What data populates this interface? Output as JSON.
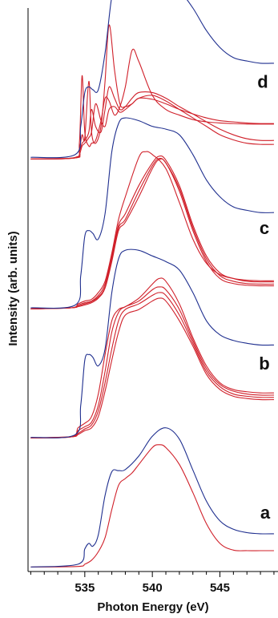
{
  "chart_data": {
    "type": "line",
    "xlabel": "Photon Energy (eV)",
    "ylabel": "Intensity (arb. units)",
    "xlim": [
      530.8,
      549.3
    ],
    "ylim": [
      0,
      10
    ],
    "grid": false,
    "legend": "none",
    "x_ticks": [
      535,
      540,
      545
    ],
    "x_tick_labels": [
      "535",
      "540",
      "545"
    ],
    "x_minor_tick_step": 1,
    "colors": {
      "blue": "#1f2f8f",
      "red": "#d0202a"
    },
    "panels": [
      {
        "label": "a",
        "series": [
          {
            "color": "blue",
            "x": [
              531,
              534.5,
              535,
              535.3,
              535.6,
              536,
              536.5,
              537,
              537.5,
              538,
              539,
              540,
              541,
              542,
              543,
              544,
              545,
              546,
              547,
              548,
              549
            ],
            "y": [
              0.03,
              0.08,
              0.35,
              0.45,
              0.4,
              0.6,
              1.3,
              1.72,
              1.74,
              1.76,
              2.0,
              2.35,
              2.5,
              2.3,
              1.75,
              1.2,
              0.85,
              0.7,
              0.64,
              0.62,
              0.62
            ]
          },
          {
            "color": "red",
            "x": [
              531,
              534.5,
              535,
              535.5,
              536,
              536.5,
              537,
              537.5,
              538,
              538.5,
              539,
              540,
              540.5,
              541,
              542,
              543,
              544,
              545,
              546,
              547,
              548,
              549
            ],
            "y": [
              0.03,
              0.04,
              0.08,
              0.15,
              0.3,
              0.55,
              1.05,
              1.48,
              1.6,
              1.7,
              1.85,
              2.15,
              2.2,
              2.15,
              1.85,
              1.35,
              0.8,
              0.45,
              0.33,
              0.32,
              0.32,
              0.32
            ]
          }
        ]
      },
      {
        "label": "b",
        "series": [
          {
            "color": "blue",
            "x": [
              531,
              534.3,
              534.7,
              535,
              535.3,
              535.6,
              536,
              536.5,
              537,
              537.5,
              538,
              539,
              540,
              541,
              542,
              543,
              544,
              545,
              546,
              547,
              548,
              549
            ],
            "y": [
              0.03,
              0.08,
              0.6,
              1.4,
              1.5,
              1.45,
              1.3,
              1.6,
              2.6,
              3.2,
              3.35,
              3.35,
              3.25,
              3.15,
              3.0,
              2.6,
              2.1,
              1.85,
              1.75,
              1.7,
              1.67,
              1.67
            ]
          },
          {
            "color": "red",
            "x": [
              531,
              534,
              534.5,
              535,
              535.5,
              536,
              536.5,
              537,
              537.5,
              538,
              539,
              540,
              540.5,
              541,
              542,
              543,
              544,
              545,
              546,
              547,
              548,
              549
            ],
            "y": [
              0.02,
              0.04,
              0.2,
              0.28,
              0.4,
              0.8,
              1.5,
              2.1,
              2.3,
              2.35,
              2.5,
              2.75,
              2.85,
              2.8,
              2.4,
              1.8,
              1.3,
              1.0,
              0.88,
              0.84,
              0.82,
              0.82
            ]
          },
          {
            "color": "red",
            "x": [
              531,
              534,
              534.5,
              535,
              535.5,
              536,
              536.5,
              537,
              537.5,
              538,
              539,
              540,
              540.5,
              541,
              542,
              543,
              544,
              545,
              546,
              547,
              548,
              549
            ],
            "y": [
              0.02,
              0.04,
              0.15,
              0.22,
              0.3,
              0.6,
              1.2,
              1.9,
              2.25,
              2.35,
              2.45,
              2.65,
              2.7,
              2.65,
              2.3,
              1.75,
              1.25,
              0.97,
              0.85,
              0.8,
              0.78,
              0.78
            ]
          },
          {
            "color": "red",
            "x": [
              531,
              534,
              534.5,
              535,
              535.5,
              536,
              536.5,
              537,
              537.5,
              538,
              539,
              540,
              540.5,
              541,
              542,
              543,
              544,
              545,
              546,
              547,
              548,
              549
            ],
            "y": [
              0.02,
              0.04,
              0.1,
              0.18,
              0.25,
              0.5,
              1.0,
              1.6,
              2.1,
              2.3,
              2.4,
              2.55,
              2.6,
              2.55,
              2.2,
              1.7,
              1.2,
              0.93,
              0.8,
              0.76,
              0.74,
              0.74
            ]
          },
          {
            "color": "red",
            "x": [
              531,
              534,
              534.5,
              535,
              535.5,
              536,
              536.5,
              537,
              537.5,
              538,
              539,
              540,
              540.5,
              541,
              542,
              543,
              544,
              545,
              546,
              547,
              548,
              549
            ],
            "y": [
              0.02,
              0.04,
              0.08,
              0.15,
              0.2,
              0.4,
              0.85,
              1.4,
              1.9,
              2.2,
              2.3,
              2.45,
              2.5,
              2.45,
              2.1,
              1.65,
              1.15,
              0.88,
              0.76,
              0.72,
              0.7,
              0.7
            ]
          }
        ]
      },
      {
        "label": "c",
        "series": [
          {
            "color": "blue",
            "x": [
              531,
              534.3,
              534.7,
              535,
              535.3,
              535.6,
              536,
              536.5,
              537,
              537.5,
              538,
              539,
              540,
              541,
              542,
              543,
              544,
              545,
              546,
              547,
              548,
              549
            ],
            "y": [
              0.03,
              0.08,
              0.6,
              1.3,
              1.4,
              1.35,
              1.25,
              1.7,
              2.8,
              3.3,
              3.4,
              3.35,
              3.25,
              3.2,
              3.1,
              2.75,
              2.3,
              2.0,
              1.82,
              1.76,
              1.72,
              1.72
            ]
          },
          {
            "color": "red",
            "x": [
              531,
              534,
              534.5,
              535,
              535.5,
              536,
              536.5,
              537,
              537.5,
              538,
              539,
              539.5,
              540,
              541,
              542,
              543,
              544,
              545,
              546,
              547,
              548,
              549
            ],
            "y": [
              0.01,
              0.03,
              0.1,
              0.15,
              0.18,
              0.3,
              0.5,
              1.0,
              1.6,
              2.0,
              2.7,
              2.8,
              2.75,
              2.5,
              1.9,
              1.25,
              0.82,
              0.62,
              0.55,
              0.52,
              0.51,
              0.51
            ]
          },
          {
            "color": "red",
            "x": [
              531,
              534,
              534.5,
              535,
              535.5,
              536,
              536.5,
              537,
              537.5,
              538,
              539,
              540,
              540.5,
              541,
              542,
              543,
              544,
              545,
              546,
              547,
              548,
              549
            ],
            "y": [
              0.01,
              0.03,
              0.08,
              0.12,
              0.15,
              0.25,
              0.45,
              0.95,
              1.5,
              1.7,
              2.2,
              2.6,
              2.72,
              2.65,
              2.2,
              1.5,
              0.95,
              0.65,
              0.55,
              0.5,
              0.49,
              0.49
            ]
          },
          {
            "color": "red",
            "x": [
              531,
              534,
              534.5,
              535,
              535.5,
              536,
              536.5,
              537,
              537.5,
              538,
              539,
              540,
              540.5,
              541,
              542,
              543,
              544,
              545,
              546,
              547,
              548,
              549
            ],
            "y": [
              0.01,
              0.03,
              0.06,
              0.1,
              0.14,
              0.22,
              0.4,
              0.9,
              1.45,
              1.6,
              2.1,
              2.55,
              2.68,
              2.6,
              2.15,
              1.45,
              0.9,
              0.6,
              0.5,
              0.46,
              0.45,
              0.45
            ]
          },
          {
            "color": "red",
            "x": [
              531,
              534,
              534.5,
              535,
              535.5,
              536,
              536.5,
              537,
              537.5,
              538,
              539,
              540,
              540.5,
              541,
              542,
              543,
              544,
              545,
              546,
              547,
              548,
              549
            ],
            "y": [
              0.01,
              0.03,
              0.05,
              0.08,
              0.12,
              0.2,
              0.38,
              0.85,
              1.4,
              1.55,
              2.0,
              2.5,
              2.66,
              2.6,
              2.1,
              1.4,
              0.85,
              0.55,
              0.46,
              0.43,
              0.42,
              0.42
            ]
          }
        ]
      },
      {
        "label": "d",
        "series": [
          {
            "color": "blue",
            "x": [
              531,
              534.3,
              534.7,
              535,
              535.3,
              535.6,
              536,
              536.5,
              537,
              537.5,
              538,
              539,
              540,
              541,
              542,
              543,
              544,
              545,
              546,
              547,
              548,
              549
            ],
            "y": [
              0.05,
              0.1,
              0.6,
              1.2,
              1.3,
              1.25,
              1.25,
              1.9,
              2.9,
              3.2,
              3.28,
              3.25,
              3.15,
              3.1,
              3.0,
              2.7,
              2.3,
              2.0,
              1.82,
              1.76,
              1.72,
              1.72
            ]
          },
          {
            "color": "red",
            "x": [
              531,
              534.3,
              534.6,
              534.8,
              535,
              535.3,
              535.5,
              535.8,
              536.2,
              536.5,
              536.8,
              537.2,
              537.6,
              538,
              538.5,
              539,
              540,
              541,
              542,
              543,
              544,
              545,
              546,
              547,
              548,
              549
            ],
            "y": [
              0.02,
              0.05,
              0.3,
              1.5,
              0.5,
              0.25,
              0.3,
              0.35,
              0.7,
              1.1,
              1.05,
              0.8,
              0.95,
              1.3,
              1.95,
              1.75,
              1.15,
              0.9,
              0.8,
              0.72,
              0.68,
              0.66,
              0.65,
              0.64,
              0.64,
              0.64
            ]
          },
          {
            "color": "red",
            "x": [
              531,
              534.3,
              534.6,
              534.8,
              535,
              535.3,
              535.5,
              535.8,
              536.2,
              536.5,
              536.8,
              537.2,
              537.6,
              538,
              538.5,
              539,
              540,
              541,
              542,
              543,
              544,
              545,
              546,
              547,
              548,
              549
            ],
            "y": [
              0.02,
              0.04,
              0.2,
              0.45,
              0.4,
              1.4,
              0.5,
              0.3,
              0.6,
              1.4,
              2.4,
              1.6,
              1.0,
              0.95,
              1.0,
              1.1,
              1.08,
              1.0,
              0.9,
              0.82,
              0.75,
              0.7,
              0.68,
              0.66,
              0.65,
              0.65
            ]
          },
          {
            "color": "red",
            "x": [
              531,
              534.3,
              534.6,
              534.8,
              535,
              535.3,
              535.5,
              535.8,
              536.2,
              536.5,
              536.8,
              537.2,
              537.6,
              538,
              538.5,
              539,
              540,
              541,
              542,
              543,
              544,
              545,
              546,
              547,
              548,
              549
            ],
            "y": [
              0.02,
              0.04,
              0.15,
              0.3,
              0.35,
              0.5,
              0.9,
              0.6,
              0.5,
              0.9,
              1.3,
              1.1,
              0.9,
              0.95,
              1.1,
              1.2,
              1.2,
              1.1,
              0.95,
              0.82,
              0.68,
              0.55,
              0.45,
              0.38,
              0.35,
              0.35
            ]
          },
          {
            "color": "red",
            "x": [
              531,
              534.3,
              534.6,
              534.8,
              535,
              535.3,
              535.5,
              535.8,
              536.2,
              536.5,
              536.8,
              537.2,
              537.6,
              538,
              538.5,
              539,
              540,
              541,
              542,
              543,
              544,
              545,
              546,
              547,
              548,
              549
            ],
            "y": [
              0.02,
              0.04,
              0.1,
              0.25,
              0.3,
              0.4,
              0.5,
              1.0,
              0.7,
              0.6,
              0.9,
              0.95,
              0.85,
              0.9,
              1.0,
              1.1,
              1.15,
              1.05,
              0.9,
              0.75,
              0.6,
              0.45,
              0.36,
              0.3,
              0.28,
              0.28
            ]
          }
        ]
      }
    ]
  }
}
